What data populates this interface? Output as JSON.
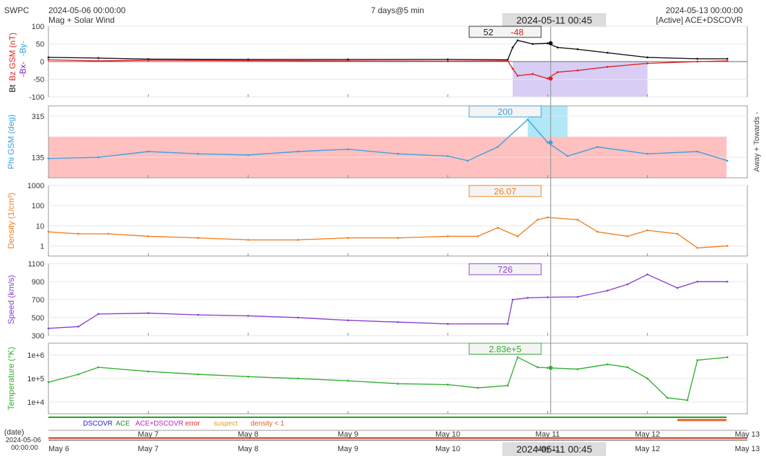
{
  "header": {
    "app": "SWPC",
    "start_time": "2024-05-06 00:00:00",
    "subtitle": "Mag + Solar Wind",
    "span": "7 days@5 min",
    "cursor_time": "2024-05-11 00:45",
    "end_time": "2024-05-13 00:00:00",
    "source": "[Active] ACE+DSCOVR"
  },
  "colors": {
    "bt": "#111111",
    "bz": "#e02020",
    "bx": "#8020c0",
    "by": "#20a0e0",
    "phi": "#3aa0e0",
    "density": "#f08020",
    "speed": "#8a40d0",
    "temp": "#30b030",
    "away_shade": "#ffc0c0",
    "toward_shade": "#b0e8f8",
    "bz_neg_shade": "#c8b8f0"
  },
  "panels": {
    "mag": {
      "ylabel_bt": "Bt",
      "ylabel_bz": "Bz GSM (nT)",
      "ylabel_bx": "-Bx-",
      "ylabel_by": "-By-",
      "ticks": [
        "100",
        "50",
        "0",
        "-50",
        "-100"
      ],
      "readout_bt": "52",
      "readout_bz": "-48"
    },
    "phi": {
      "ylabel": "Phi GSM (deg)",
      "ticks": [
        "315",
        "135"
      ],
      "readout": "200",
      "right_label": "Away +   Towards -"
    },
    "density": {
      "ylabel": "Density (1/cm³)",
      "ticks": [
        "1000",
        "100",
        "10",
        "1"
      ],
      "readout": "26.07"
    },
    "speed": {
      "ylabel": "Speed (km/s)",
      "ticks": [
        "1100",
        "900",
        "700",
        "500",
        "300"
      ],
      "readout": "726"
    },
    "temp": {
      "ylabel": "Temperature (°K)",
      "ticks": [
        "1e+6",
        "1e+5",
        "1e+4"
      ],
      "readout": "2.83e+5"
    }
  },
  "legend": {
    "items": [
      {
        "label": "DSCOVR",
        "color": "#2020c0"
      },
      {
        "label": "ACE",
        "color": "#209020"
      },
      {
        "label": "ACE+DSCOVR",
        "color": "#c020c0"
      },
      {
        "label": "error",
        "color": "#e02020"
      },
      {
        "label": "suspect",
        "color": "#e0a020"
      },
      {
        "label": "density < 1",
        "color": "#e06020"
      }
    ]
  },
  "axis": {
    "date_label": "(date)",
    "date_start_line1": "2024-05-06",
    "date_start_line2": "00:00:00",
    "days": [
      "May 6",
      "May 7",
      "May 8",
      "May 9",
      "May 10",
      "May 11",
      "May 12",
      "May 13"
    ]
  },
  "chart_data": {
    "type": "line",
    "x_unit": "days since 2024-05-06",
    "cursor_x": 5.03,
    "series": [
      {
        "name": "Bt",
        "panel": "mag",
        "x": [
          0,
          0.5,
          1,
          2,
          3,
          4,
          4.6,
          4.65,
          4.7,
          4.85,
          5.0,
          5.1,
          5.3,
          5.6,
          6.0,
          6.5,
          6.8
        ],
        "y": [
          12,
          10,
          7,
          6,
          6,
          6,
          5,
          40,
          60,
          50,
          52,
          40,
          35,
          25,
          12,
          8,
          8
        ]
      },
      {
        "name": "Bz GSM",
        "panel": "mag",
        "x": [
          0,
          0.5,
          1,
          2,
          3,
          4,
          4.6,
          4.65,
          4.7,
          4.85,
          5.0,
          5.1,
          5.3,
          5.6,
          6.0,
          6.5,
          6.8
        ],
        "y": [
          5,
          2,
          4,
          3,
          2,
          1,
          2,
          -20,
          -40,
          -35,
          -48,
          -30,
          -25,
          -15,
          -5,
          0,
          2
        ]
      },
      {
        "name": "Phi GSM",
        "panel": "phi",
        "x": [
          0,
          0.5,
          1,
          1.5,
          2,
          2.5,
          3,
          3.5,
          4,
          4.2,
          4.5,
          4.8,
          5,
          5.2,
          5.5,
          6,
          6.5,
          6.8
        ],
        "y": [
          130,
          135,
          160,
          150,
          145,
          160,
          170,
          150,
          140,
          120,
          180,
          300,
          200,
          140,
          180,
          150,
          160,
          120
        ]
      },
      {
        "name": "Density",
        "panel": "density",
        "x": [
          0,
          0.3,
          0.6,
          1,
          1.5,
          2,
          2.5,
          3,
          3.5,
          4,
          4.3,
          4.5,
          4.7,
          4.9,
          5,
          5.3,
          5.5,
          5.8,
          6,
          6.3,
          6.5,
          6.8
        ],
        "y": [
          5,
          4,
          4,
          3,
          2.5,
          2,
          2,
          2.5,
          2.5,
          3,
          3,
          8,
          3,
          20,
          26.07,
          20,
          5,
          3,
          6,
          4,
          0.8,
          1
        ]
      },
      {
        "name": "Speed",
        "panel": "speed",
        "x": [
          0,
          0.3,
          0.5,
          1,
          1.5,
          2,
          2.5,
          3,
          3.5,
          4,
          4.6,
          4.65,
          4.8,
          5,
          5.3,
          5.6,
          5.8,
          6,
          6.3,
          6.5,
          6.8
        ],
        "y": [
          380,
          400,
          540,
          550,
          530,
          520,
          500,
          470,
          450,
          430,
          430,
          700,
          720,
          726,
          730,
          800,
          870,
          980,
          830,
          900,
          900
        ]
      },
      {
        "name": "Temperature",
        "panel": "temp",
        "x": [
          0,
          0.3,
          0.5,
          1,
          1.5,
          2,
          2.5,
          3,
          3.5,
          4,
          4.3,
          4.6,
          4.7,
          4.9,
          5,
          5.3,
          5.6,
          5.8,
          6,
          6.2,
          6.4,
          6.5,
          6.8
        ],
        "y": [
          70000,
          150000,
          300000,
          200000,
          150000,
          120000,
          100000,
          80000,
          60000,
          55000,
          40000,
          50000,
          800000,
          300000,
          283000,
          250000,
          400000,
          300000,
          100000,
          15000,
          12000,
          600000,
          800000
        ]
      }
    ]
  }
}
